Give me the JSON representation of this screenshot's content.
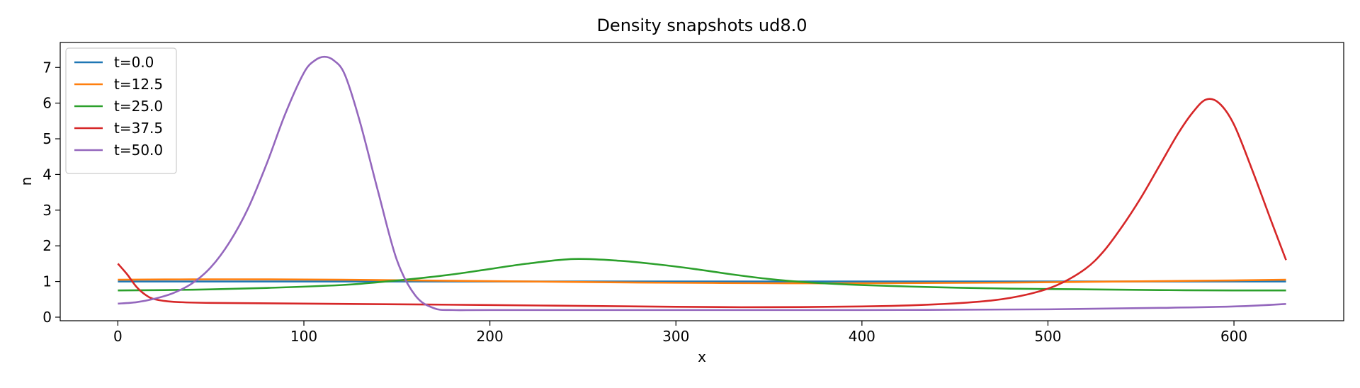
{
  "chart_data": {
    "type": "line",
    "title": "Density snapshots  ud8.0",
    "xlabel": "x",
    "ylabel": "n",
    "xlim": [
      -31,
      659
    ],
    "ylim": [
      -0.1,
      7.7
    ],
    "xticks": [
      0,
      100,
      200,
      300,
      400,
      500,
      600
    ],
    "yticks": [
      0,
      1,
      2,
      3,
      4,
      5,
      6,
      7
    ],
    "grid": false,
    "legend_position": "top-left",
    "series": [
      {
        "name": "t=0.0",
        "color": "#1f77b4",
        "x": [
          0,
          100,
          200,
          300,
          400,
          500,
          628
        ],
        "y": [
          1.0,
          1.0,
          1.0,
          1.0,
          1.0,
          1.0,
          1.0
        ]
      },
      {
        "name": "t=12.5",
        "color": "#ff7f0e",
        "x": [
          0,
          40,
          80,
          120,
          160,
          200,
          240,
          280,
          320,
          360,
          400,
          440,
          480,
          520,
          560,
          600,
          628
        ],
        "y": [
          1.05,
          1.06,
          1.06,
          1.05,
          1.03,
          1.01,
          0.99,
          0.97,
          0.96,
          0.95,
          0.95,
          0.96,
          0.97,
          0.99,
          1.01,
          1.03,
          1.05
        ]
      },
      {
        "name": "t=25.0",
        "color": "#2ca02c",
        "x": [
          0,
          40,
          80,
          120,
          140,
          160,
          180,
          200,
          220,
          245,
          270,
          290,
          310,
          330,
          350,
          370,
          400,
          440,
          480,
          520,
          560,
          600,
          628
        ],
        "y": [
          0.75,
          0.77,
          0.82,
          0.9,
          0.98,
          1.08,
          1.2,
          1.35,
          1.5,
          1.63,
          1.58,
          1.48,
          1.35,
          1.2,
          1.07,
          0.98,
          0.9,
          0.84,
          0.8,
          0.78,
          0.76,
          0.75,
          0.75
        ]
      },
      {
        "name": "t=37.5",
        "color": "#d62728",
        "x": [
          0,
          5,
          10,
          15,
          20,
          30,
          50,
          100,
          200,
          300,
          350,
          400,
          440,
          470,
          490,
          505,
          520,
          530,
          540,
          550,
          560,
          570,
          578,
          585,
          592,
          600,
          610,
          620,
          628
        ],
        "y": [
          1.5,
          1.2,
          0.85,
          0.62,
          0.5,
          0.43,
          0.4,
          0.38,
          0.34,
          0.29,
          0.28,
          0.3,
          0.36,
          0.47,
          0.65,
          0.9,
          1.35,
          1.85,
          2.55,
          3.35,
          4.25,
          5.15,
          5.75,
          6.1,
          6.0,
          5.4,
          4.1,
          2.7,
          1.6
        ]
      },
      {
        "name": "t=50.0",
        "color": "#9467bd",
        "x": [
          0,
          10,
          20,
          30,
          40,
          50,
          60,
          70,
          80,
          90,
          100,
          106,
          111,
          116,
          122,
          130,
          140,
          150,
          160,
          170,
          180,
          200,
          300,
          400,
          500,
          560,
          600,
          628
        ],
        "y": [
          0.38,
          0.42,
          0.52,
          0.68,
          0.95,
          1.4,
          2.1,
          3.05,
          4.3,
          5.7,
          6.85,
          7.2,
          7.3,
          7.2,
          6.8,
          5.5,
          3.5,
          1.6,
          0.6,
          0.25,
          0.2,
          0.2,
          0.2,
          0.2,
          0.22,
          0.26,
          0.3,
          0.37
        ]
      }
    ]
  }
}
